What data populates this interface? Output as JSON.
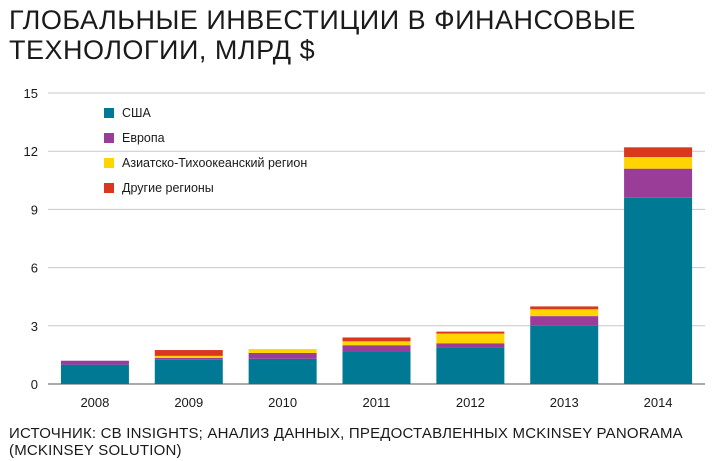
{
  "title": "ГЛОБАЛЬНЫЕ ИНВЕСТИЦИИ В ФИНАНСОВЫЕ ТЕХНОЛОГИИ, МЛРД $",
  "source": "ИСТОЧНИК: CB INSIGHTS; АНАЛИЗ ДАННЫХ, ПРЕДОСТАВЛЕННЫХ MCKINSEY PANORAMA (MCKINSEY SOLUTION)",
  "chart_data": {
    "type": "bar",
    "stacked": true,
    "title": "ГЛОБАЛЬНЫЕ ИНВЕСТИЦИИ В ФИНАНСОВЫЕ ТЕХНОЛОГИИ, МЛРД $",
    "xlabel": "",
    "ylabel": "",
    "ylim": [
      0,
      15
    ],
    "yticks": [
      0,
      3,
      6,
      9,
      12,
      15
    ],
    "grid": true,
    "legend_position": "top-left",
    "categories": [
      "2008",
      "2009",
      "2010",
      "2011",
      "2012",
      "2013",
      "2014"
    ],
    "series": [
      {
        "name": "США",
        "color": "#007a94",
        "values": [
          1.0,
          1.25,
          1.3,
          1.65,
          1.9,
          3.0,
          9.6
        ]
      },
      {
        "name": "Европа",
        "color": "#993d99",
        "values": [
          0.2,
          0.1,
          0.3,
          0.35,
          0.2,
          0.5,
          1.5
        ]
      },
      {
        "name": "Азиатско-Тихоокеанский регион",
        "color": "#ffd500",
        "values": [
          0.0,
          0.1,
          0.2,
          0.2,
          0.5,
          0.35,
          0.6
        ]
      },
      {
        "name": "Другие регионы",
        "color": "#d9381e",
        "values": [
          0.0,
          0.3,
          0.0,
          0.2,
          0.1,
          0.15,
          0.5
        ]
      }
    ]
  }
}
